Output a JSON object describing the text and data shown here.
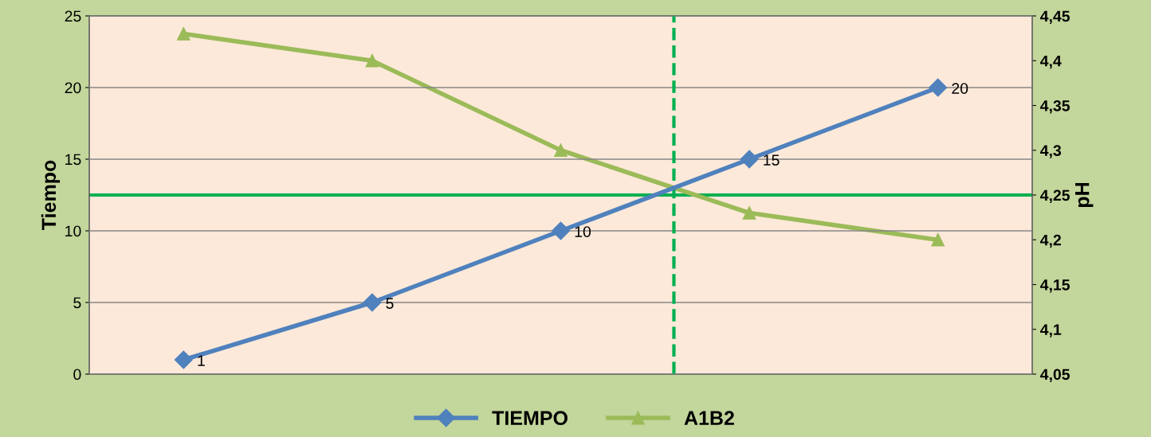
{
  "chart_data": {
    "type": "line",
    "ylabel": "Tiempo",
    "y2label": "pH",
    "categories": [
      null,
      null,
      null,
      null,
      null
    ],
    "series": [
      {
        "name": "TIEMPO",
        "color": "#4f81bd",
        "marker": "diamond",
        "values": [
          1,
          5,
          10,
          15,
          20
        ],
        "value_labels": [
          "1",
          "5",
          "10",
          "15",
          "20"
        ]
      },
      {
        "name": "A1B2",
        "color": "#9bbb59",
        "marker": "triangle",
        "axis": "y2",
        "values": [
          4.43,
          4.4,
          4.3,
          4.23,
          4.2
        ]
      }
    ],
    "ylim": [
      0,
      25
    ],
    "yticks": [
      0,
      5,
      10,
      15,
      20,
      25
    ],
    "y2lim": [
      4.05,
      4.45
    ],
    "y2ticks": [
      {
        "value": 4.05,
        "label": "4,05"
      },
      {
        "value": 4.1,
        "label": "4,1"
      },
      {
        "value": 4.15,
        "label": "4,15"
      },
      {
        "value": 4.2,
        "label": "4,2"
      },
      {
        "value": 4.25,
        "label": "4,25"
      },
      {
        "value": 4.3,
        "label": "4,3"
      },
      {
        "value": 4.35,
        "label": "4,35"
      },
      {
        "value": 4.4,
        "label": "4,4"
      },
      {
        "value": 4.45,
        "label": "4,45"
      }
    ],
    "ref_lines": [
      {
        "axis": "y2",
        "value": 4.25,
        "color": "#00b050",
        "line_style": "solid"
      }
    ],
    "grid": "y",
    "legend": "bottom"
  }
}
